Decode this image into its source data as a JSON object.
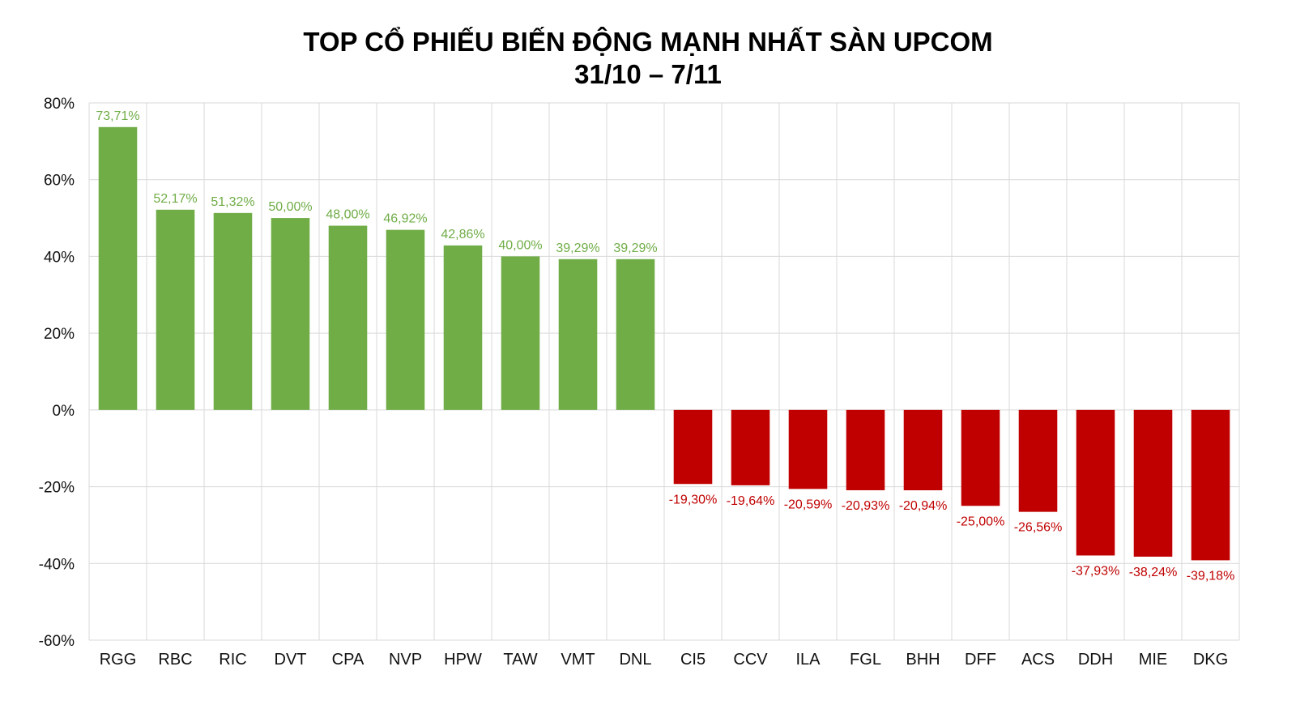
{
  "chart_data": {
    "type": "bar",
    "title": "TOP CỔ PHIẾU BIẾN ĐỘNG MẠNH NHẤT SÀN UPCOM",
    "subtitle": "31/10 – 7/11",
    "categories": [
      "RGG",
      "RBC",
      "RIC",
      "DVT",
      "CPA",
      "NVP",
      "HPW",
      "TAW",
      "VMT",
      "DNL",
      "CI5",
      "CCV",
      "ILA",
      "FGL",
      "BHH",
      "DFF",
      "ACS",
      "DDH",
      "MIE",
      "DKG"
    ],
    "values": [
      73.71,
      52.17,
      51.32,
      50.0,
      48.0,
      46.92,
      42.86,
      40.0,
      39.29,
      39.29,
      -19.3,
      -19.64,
      -20.59,
      -20.93,
      -20.94,
      -25.0,
      -26.56,
      -37.93,
      -38.24,
      -39.18
    ],
    "data_labels": [
      "73,71%",
      "52,17%",
      "51,32%",
      "50,00%",
      "48,00%",
      "46,92%",
      "42,86%",
      "40,00%",
      "39,29%",
      "39,29%",
      "-19,30%",
      "-19,64%",
      "-20,59%",
      "-20,93%",
      "-20,94%",
      "-25,00%",
      "-26,56%",
      "-37,93%",
      "-38,24%",
      "-39,18%"
    ],
    "y_ticks": [
      80,
      60,
      40,
      20,
      0,
      -20,
      -40,
      -60
    ],
    "y_tick_labels": [
      "80%",
      "60%",
      "40%",
      "20%",
      "0%",
      "-20%",
      "-40%",
      "-60%"
    ],
    "ylim": [
      -60,
      80
    ],
    "grid": true,
    "legend": "none",
    "colors": {
      "positive": "#70AD47",
      "negative": "#C00000",
      "grid": "#D9D9D9"
    }
  }
}
